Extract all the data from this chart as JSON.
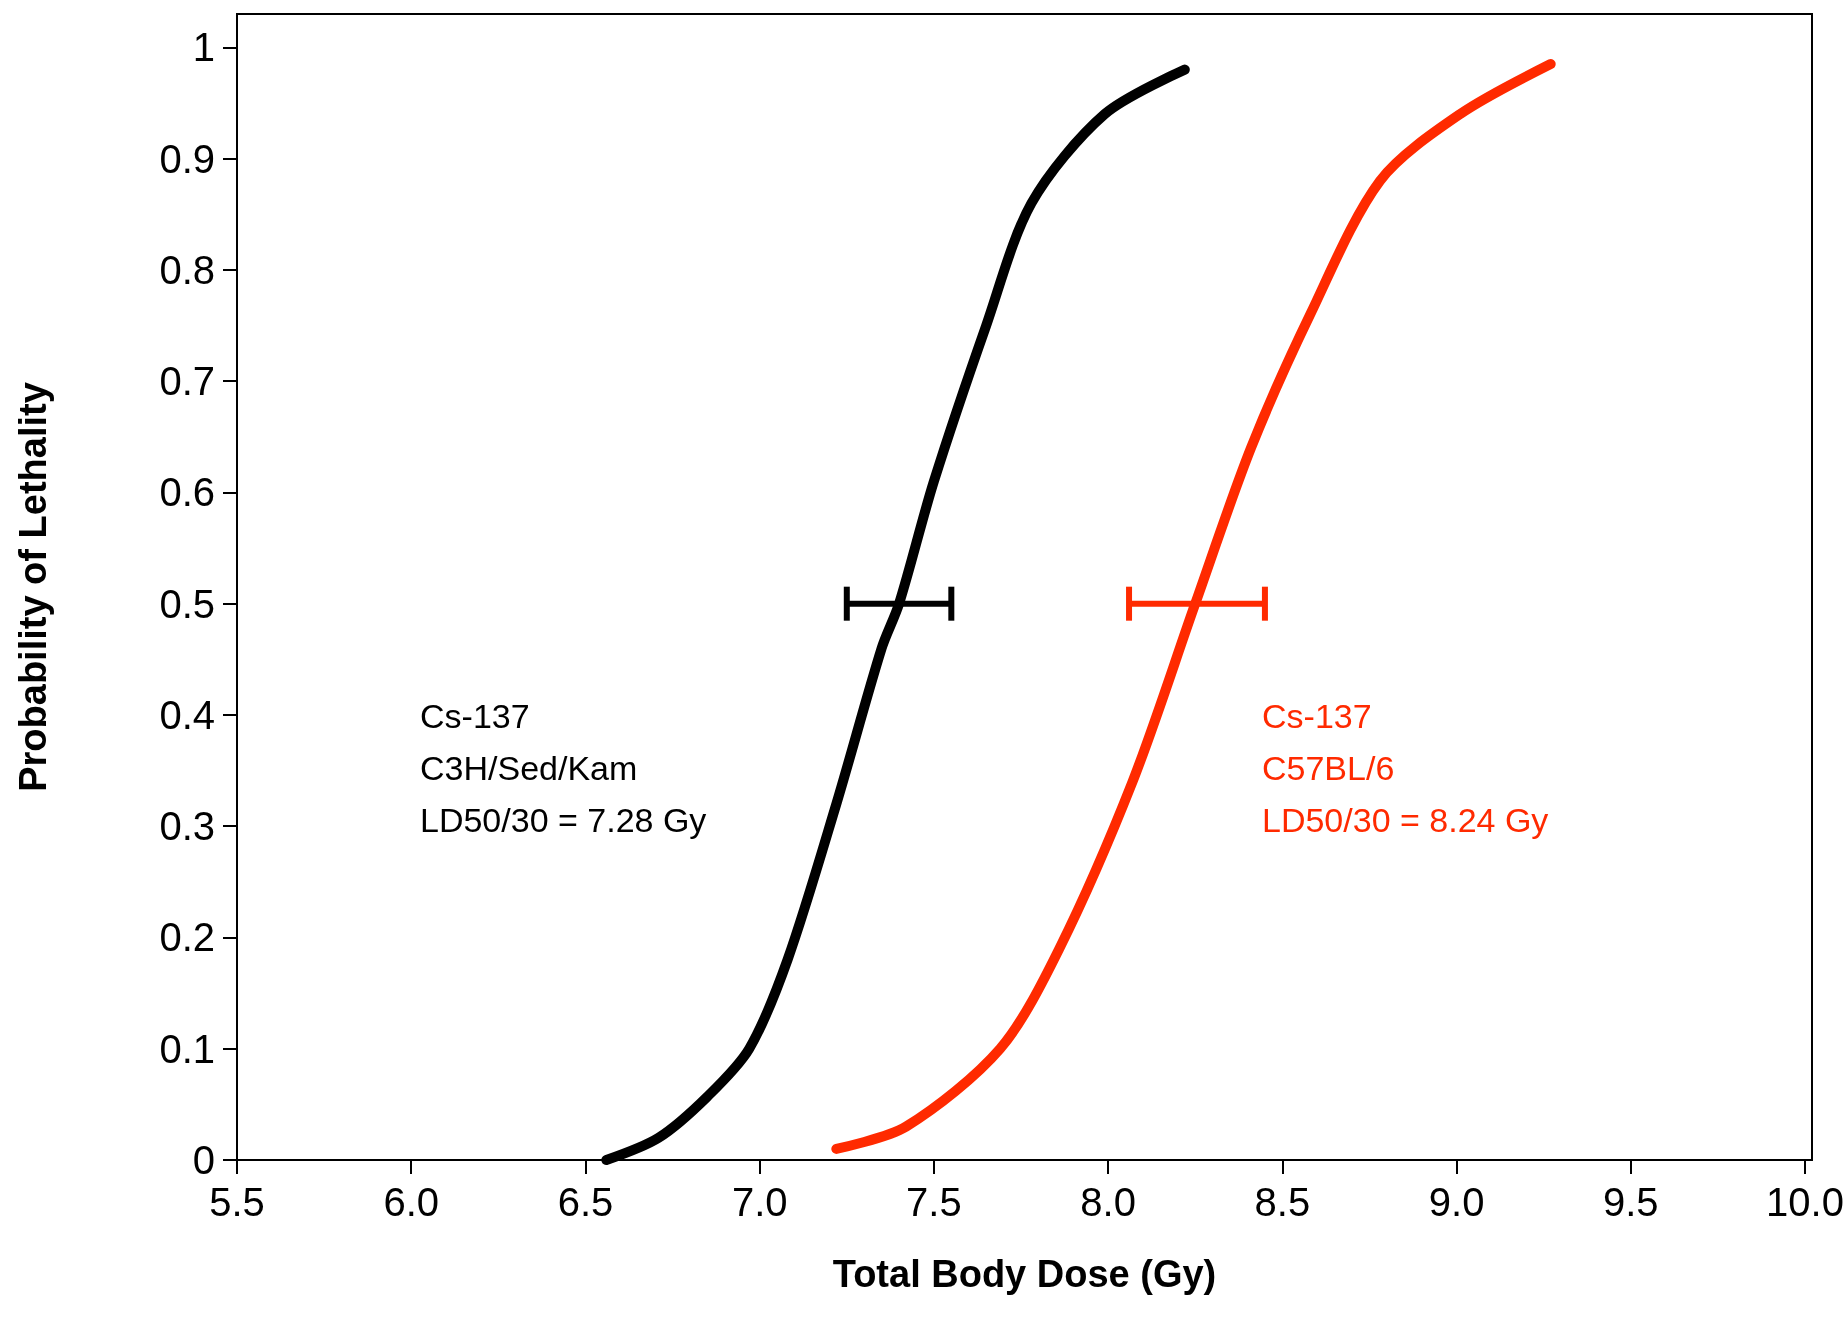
{
  "chart_data": {
    "type": "line",
    "xlabel": "Total Body Dose (Gy)",
    "ylabel": "Probability of Lethality",
    "xlim": [
      5.5,
      10.02
    ],
    "ylim": [
      0,
      1.03
    ],
    "xticks": [
      5.5,
      {
        "value": 6,
        "label": "6.0"
      },
      6.5,
      {
        "value": 7,
        "label": "7.0"
      },
      7.5,
      {
        "value": 8,
        "label": "8.0"
      },
      8.5,
      {
        "value": 9,
        "label": "9.0"
      },
      9.5,
      {
        "value": 10,
        "label": "10.0"
      }
    ],
    "yticks": [
      0,
      0.1,
      0.2,
      0.3,
      0.4,
      0.5,
      0.6,
      0.7,
      0.8,
      0.9,
      1
    ],
    "grid": false,
    "marker": "none",
    "line_style": "solid",
    "series": [
      {
        "color": "#000000",
        "x": [
          6.56,
          6.71,
          6.85,
          6.97,
          7.08,
          7.22,
          7.35,
          7.4,
          7.5,
          7.65,
          7.78,
          7.99,
          8.22
        ],
        "values": [
          0,
          0.02,
          0.057,
          0.1,
          0.18,
          0.32,
          0.46,
          0.5,
          0.61,
          0.75,
          0.86,
          0.94,
          0.98
        ],
        "xerrors": [
          null,
          null,
          null,
          null,
          null,
          null,
          null,
          [
            7.25,
            7.55
          ],
          null,
          null,
          null,
          null,
          null
        ]
      },
      {
        "color": "#ff2a00",
        "x": [
          7.22,
          7.42,
          7.69,
          7.86,
          8.07,
          8.25,
          8.41,
          8.58,
          8.78,
          9.01,
          9.27
        ],
        "values": [
          0.01,
          0.03,
          0.1,
          0.19,
          0.34,
          0.5,
          0.64,
          0.76,
          0.88,
          0.94,
          0.985
        ],
        "xerrors": [
          null,
          null,
          null,
          null,
          null,
          [
            8.06,
            8.45
          ],
          null,
          null,
          null,
          null,
          null
        ]
      }
    ],
    "annotations": [
      "Cs-137\nC3H/Sed/Kam\nLD50/30 = 7.28 Gy",
      "Cs-137\nC57BL/6\nLD50/30 = 8.24 Gy"
    ]
  }
}
